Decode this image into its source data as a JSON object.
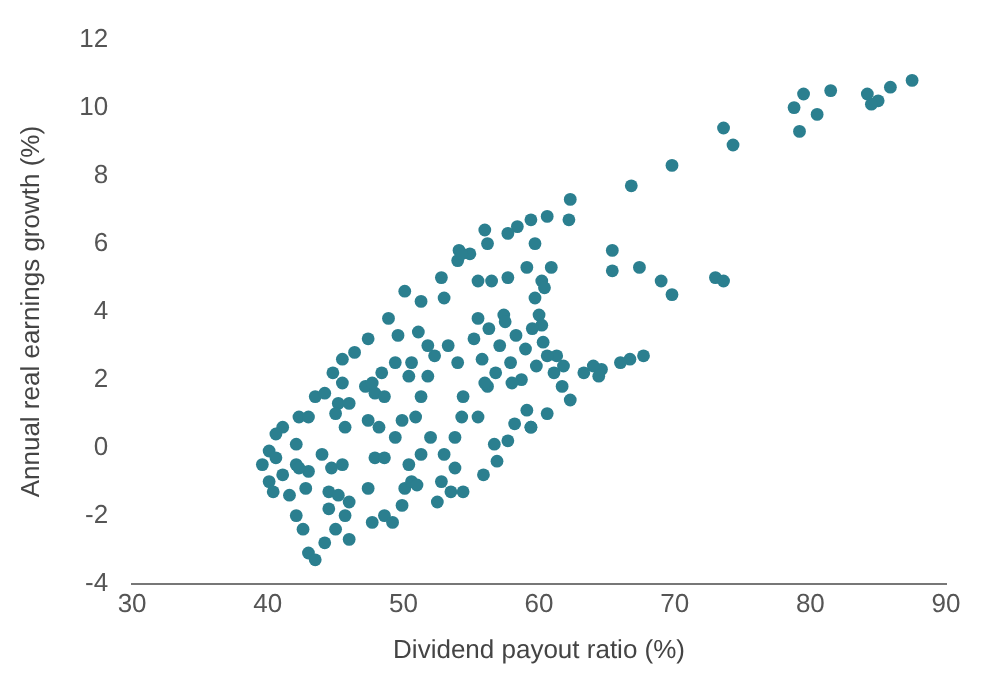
{
  "chart_data": {
    "type": "scatter",
    "xlabel": "Dividend payout ratio (%)",
    "ylabel": "Annual real earnings growth (%)",
    "xlim": [
      30,
      90
    ],
    "xticks": [
      30,
      40,
      50,
      60,
      70,
      80,
      90
    ],
    "ylim": [
      -4,
      12
    ],
    "yticks": [
      -4,
      -2,
      0,
      2,
      4,
      6,
      8,
      10,
      12
    ],
    "grid": false,
    "legend": false,
    "marker": "circle",
    "series": [
      {
        "color": "#2b7f8f",
        "x": [
          87.5,
          85.9,
          85.0,
          84.5,
          84.2,
          81.5,
          80.5,
          79.5,
          78.8,
          79.2,
          73.6,
          74.3,
          69.8,
          66.8,
          65.4,
          65.4,
          67.4,
          69.0,
          69.8,
          73.0,
          73.6,
          67.7,
          66.7,
          66.0,
          64.6,
          64.0,
          63.3,
          64.4,
          61.8,
          61.3,
          62.3,
          62.2,
          60.6,
          59.4,
          58.4,
          57.7,
          56.0,
          56.2,
          54.9,
          54.1,
          54.0,
          59.7,
          60.9,
          59.1,
          57.7,
          56.5,
          55.5,
          60.2,
          60.4,
          59.7,
          60.0,
          60.2,
          57.4,
          60.6,
          61.1,
          59.1,
          59.4,
          58.2,
          56.7,
          54.3,
          53.8,
          54.3,
          52.8,
          50.1,
          51.3,
          53.0,
          48.9,
          49.6,
          47.4,
          46.4,
          45.5,
          44.8,
          43.5,
          45.2,
          42.3,
          41.1,
          40.6,
          40.1,
          39.6,
          40.1,
          40.4,
          41.6,
          41.1,
          42.1,
          43.0,
          42.8,
          42.1,
          42.6,
          43.0,
          43.5,
          44.2,
          44.5,
          45.0,
          45.7,
          46.0,
          44.0,
          44.7,
          45.5,
          45.7,
          45.0,
          43.0,
          46.0,
          47.2,
          47.9,
          48.6,
          47.4,
          48.2,
          49.4,
          49.9,
          47.4,
          47.9,
          48.6,
          47.7,
          48.6,
          49.2,
          49.9,
          50.1,
          50.6,
          50.4,
          51.3,
          52.0,
          53.0,
          53.8,
          52.8,
          53.5,
          50.9,
          51.3,
          50.4,
          51.8,
          52.3,
          53.3,
          54.0,
          51.8,
          51.1,
          50.6,
          49.4,
          48.4,
          47.7,
          45.5,
          44.2,
          42.1,
          44.5,
          45.2,
          46.0,
          42.3,
          40.6,
          51.0,
          52.5,
          54.4,
          55.9,
          56.9,
          57.7,
          59.4,
          60.6,
          62.3,
          61.7,
          55.5,
          54.4,
          56.2,
          55.2,
          55.8,
          56.3,
          56.8,
          57.1,
          57.5,
          57.9,
          58.3,
          58.7,
          59.0,
          59.5,
          59.8,
          56.0,
          58.0,
          55.5,
          60.3
        ],
        "values": [
          10.8,
          10.6,
          10.2,
          10.1,
          10.4,
          10.5,
          9.8,
          10.4,
          10.0,
          9.3,
          9.4,
          8.9,
          8.3,
          7.7,
          5.8,
          5.2,
          5.3,
          4.9,
          4.5,
          5.0,
          4.9,
          2.7,
          2.6,
          2.5,
          2.3,
          2.4,
          2.2,
          2.1,
          2.4,
          2.7,
          7.3,
          6.7,
          6.8,
          6.7,
          6.5,
          6.3,
          6.4,
          6.0,
          5.7,
          5.8,
          5.5,
          6.0,
          5.3,
          5.3,
          5.0,
          4.9,
          4.9,
          4.9,
          4.7,
          4.4,
          3.9,
          3.6,
          3.9,
          2.7,
          2.2,
          1.1,
          0.6,
          0.7,
          0.1,
          0.9,
          0.3,
          5.7,
          5.0,
          4.6,
          4.3,
          4.4,
          3.8,
          3.3,
          3.2,
          2.8,
          2.6,
          2.2,
          1.5,
          1.3,
          0.9,
          0.6,
          0.4,
          -0.1,
          -0.5,
          -1.0,
          -1.3,
          -1.4,
          -0.8,
          -0.5,
          -0.7,
          -1.2,
          -2.0,
          -2.4,
          -3.1,
          -3.3,
          -2.8,
          -1.8,
          -2.4,
          -2.0,
          -2.7,
          -0.2,
          -0.6,
          -0.5,
          0.6,
          1.0,
          0.9,
          1.3,
          1.8,
          1.6,
          1.5,
          0.8,
          0.6,
          0.3,
          0.8,
          -1.2,
          -0.3,
          -0.3,
          -2.2,
          -2.0,
          -2.2,
          -1.7,
          -1.2,
          -1.0,
          -0.5,
          -0.2,
          0.3,
          -0.2,
          -0.6,
          -1.0,
          -1.3,
          0.9,
          1.5,
          2.1,
          2.1,
          2.7,
          3.0,
          2.5,
          3.0,
          3.4,
          2.5,
          2.5,
          2.2,
          1.9,
          1.9,
          1.6,
          0.1,
          -1.3,
          -1.4,
          -1.6,
          -0.6,
          -0.3,
          -1.1,
          -1.6,
          -1.3,
          -0.8,
          -0.4,
          0.2,
          0.6,
          1.0,
          1.4,
          1.8,
          0.9,
          1.5,
          1.8,
          3.2,
          2.6,
          3.5,
          2.2,
          3.0,
          3.7,
          2.5,
          3.3,
          2.0,
          2.9,
          3.5,
          2.4,
          1.9,
          1.9,
          3.8,
          3.1
        ]
      }
    ]
  }
}
